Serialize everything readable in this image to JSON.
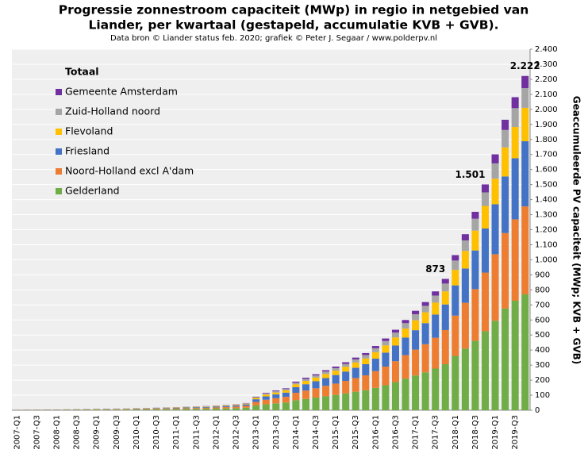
{
  "chart_data": {
    "type": "stacked_bar",
    "title": [
      "Progressie zonnestroom capaciteit (MWp) in regio in netgebied van",
      "Liander, per kwartaal (gestapeld, accumulatie  KVB + GVB)."
    ],
    "subtitle": "Data bron © Liander status feb. 2020; grafiek © Peter J. Segaar / www.polderpv.nl",
    "y_label": "Geaccumuleerde PV capaciteit (MWp; KVB + GVB)",
    "legend_title": "Totaal",
    "legend_position": "upper left",
    "grid": true,
    "annotations": [
      "873",
      "1.501",
      "2.222"
    ],
    "categories": [
      "2007-Q1",
      null,
      "2007-Q3",
      null,
      "2008-Q1",
      null,
      "2008-Q3",
      null,
      "2009-Q1",
      null,
      "2009-Q3",
      null,
      "2010-Q1",
      null,
      "2010-Q3",
      null,
      "2011-Q1",
      null,
      "2011-Q3",
      null,
      "2012-Q1",
      null,
      "2012-Q3",
      null,
      "2013-Q1",
      null,
      "2013-Q3",
      null,
      "2014-Q1",
      null,
      "2014-Q3",
      null,
      "2015-Q1",
      null,
      "2015-Q3",
      null,
      "2016-Q1",
      null,
      "2016-Q3",
      null,
      "2017-Q1",
      null,
      "2017-Q3",
      null,
      "2018-Q1",
      null,
      "2018-Q3",
      null,
      "2019-Q1",
      null,
      "2019-Q3",
      null
    ],
    "series": [
      {
        "name": "Gelderland",
        "color": "#70ad47",
        "values": [
          1.1,
          1.4,
          1.4,
          1.8,
          1.8,
          2.1,
          2.5,
          2.8,
          3.2,
          3.5,
          3.9,
          4.2,
          4.9,
          5.3,
          6.0,
          6.7,
          7.4,
          8.1,
          8.8,
          9.8,
          10.9,
          12.3,
          14,
          16.8,
          32,
          40,
          46,
          51,
          67,
          75,
          84,
          93,
          102,
          112,
          123,
          133,
          149,
          166,
          187,
          210,
          231,
          252,
          277,
          306,
          361,
          410,
          462,
          525,
          595,
          676,
          728,
          770
        ]
      },
      {
        "name": "Noord-Holland excl A'dam",
        "color": "#ed7d31",
        "values": [
          0.8,
          1.0,
          1.0,
          1.3,
          1.3,
          1.6,
          1.8,
          2.1,
          2.3,
          2.6,
          2.9,
          3.1,
          3.6,
          3.9,
          4.4,
          4.9,
          5.5,
          6.0,
          6.5,
          7.3,
          8.1,
          9.1,
          10.4,
          12.5,
          23,
          30,
          34,
          38,
          49,
          56,
          62,
          69,
          75,
          83,
          91,
          99,
          111,
          124,
          139,
          156,
          172,
          187,
          205,
          227,
          268,
          304,
          343,
          390,
          442,
          502,
          541,
          585
        ]
      },
      {
        "name": "Friesland",
        "color": "#4472c4",
        "values": [
          0.6,
          0.8,
          0.8,
          1.0,
          1.0,
          1.2,
          1.4,
          1.6,
          1.8,
          2.0,
          2.1,
          2.3,
          2.7,
          2.9,
          3.3,
          3.7,
          4.1,
          4.5,
          4.9,
          5.5,
          6.0,
          6.8,
          7.8,
          9.4,
          18,
          22,
          25,
          28,
          37,
          42,
          47,
          52,
          57,
          62,
          68,
          74,
          83,
          93,
          104,
          117,
          129,
          140,
          154,
          170,
          201,
          228,
          257,
          293,
          332,
          376,
          406,
          433
        ]
      },
      {
        "name": "Flevoland",
        "color": "#ffc000",
        "values": [
          0.3,
          0.4,
          0.4,
          0.5,
          0.5,
          0.6,
          0.7,
          0.8,
          0.9,
          1.0,
          1.1,
          1.2,
          1.4,
          1.5,
          1.7,
          1.9,
          2.1,
          2.3,
          2.5,
          2.8,
          3.1,
          3.5,
          4,
          4.8,
          9,
          12,
          13,
          15,
          19,
          22,
          24,
          27,
          29,
          32,
          35,
          38,
          43,
          48,
          54,
          60,
          66,
          72,
          79,
          87,
          103,
          117,
          132,
          150,
          170,
          193,
          208,
          222
        ]
      },
      {
        "name": "Zuid-Holland noord",
        "color": "#a5a5a5",
        "values": [
          0.2,
          0.2,
          0.2,
          0.3,
          0.3,
          0.4,
          0.4,
          0.5,
          0.5,
          0.6,
          0.7,
          0.7,
          0.8,
          0.9,
          1.0,
          1.1,
          1.3,
          1.4,
          1.5,
          1.7,
          1.9,
          2.1,
          2.4,
          2.9,
          5,
          7,
          8,
          9,
          11,
          13,
          14,
          16,
          17,
          19,
          21,
          23,
          26,
          29,
          32,
          36,
          40,
          43,
          47,
          52,
          62,
          70,
          79,
          90,
          102,
          116,
          125,
          131
        ]
      },
      {
        "name": "Gemeente Amsterdam",
        "color": "#7030a0",
        "values": [
          0.1,
          0.1,
          0.1,
          0.2,
          0.2,
          0.2,
          0.2,
          0.3,
          0.3,
          0.4,
          0.4,
          0.4,
          0.5,
          0.5,
          0.6,
          0.7,
          0.7,
          0.8,
          0.9,
          1.0,
          1.1,
          1.2,
          1.4,
          1.7,
          3,
          4,
          5,
          5,
          7,
          8,
          8,
          9,
          10,
          11,
          12,
          13,
          15,
          17,
          19,
          21,
          23,
          25,
          28,
          31,
          36,
          41,
          46,
          53,
          60,
          68,
          73,
          81
        ]
      }
    ],
    "ylim": [
      0,
      2400
    ],
    "yticks": [
      0,
      100,
      200,
      300,
      400,
      500,
      600,
      700,
      800,
      900,
      {
        "value": 1000,
        "label": "1.000"
      },
      {
        "value": 1100,
        "label": "1.100"
      },
      {
        "value": 1200,
        "label": "1.200"
      },
      {
        "value": 1300,
        "label": "1.300"
      },
      {
        "value": 1400,
        "label": "1.400"
      },
      {
        "value": 1500,
        "label": "1.500"
      },
      {
        "value": 1600,
        "label": "1.600"
      },
      {
        "value": 1700,
        "label": "1.700"
      },
      {
        "value": 1800,
        "label": "1.800"
      },
      {
        "value": 1900,
        "label": "1.900"
      },
      {
        "value": 2000,
        "label": "2.000"
      },
      {
        "value": 2100,
        "label": "2.100"
      },
      {
        "value": 2200,
        "label": "2.200"
      },
      {
        "value": 2300,
        "label": "2.300"
      },
      {
        "value": 2400,
        "label": "2.400"
      }
    ]
  }
}
